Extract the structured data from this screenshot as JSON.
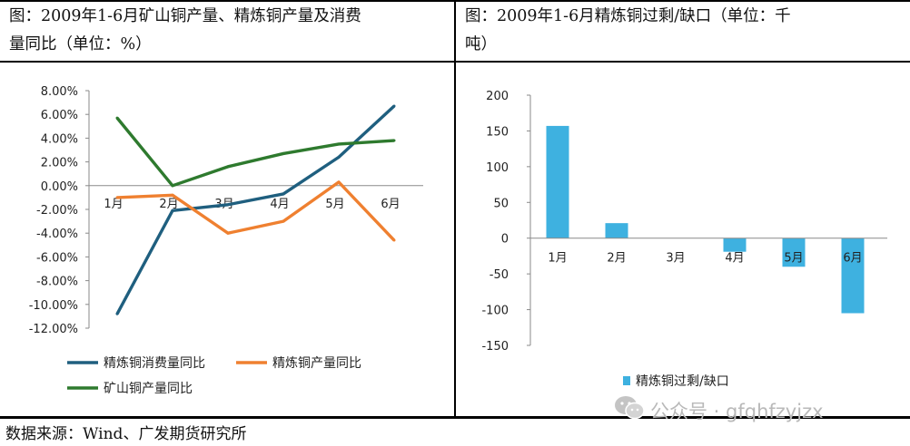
{
  "left_panel": {
    "title_line1": "图：2009年1-6月矿山铜产量、精炼铜产量及消费",
    "title_line2": "量同比（单位：%）"
  },
  "right_panel": {
    "title_line1": "图：2009年1-6月精炼铜过剩/缺口（单位：千",
    "title_line2": "吨）"
  },
  "source_text": "数据来源：Wind、广发期货研究所",
  "watermark": {
    "text": "公众号 · gfqhfzyjzx",
    "icon": "wechat-icon"
  },
  "chart_data": [
    {
      "type": "line",
      "categories": [
        "1月",
        "2月",
        "3月",
        "4月",
        "5月",
        "6月"
      ],
      "series": [
        {
          "name": "精炼铜消费量同比",
          "values": [
            -10.8,
            -2.1,
            -1.6,
            -0.7,
            2.4,
            6.7
          ],
          "color": "#1f5f7f"
        },
        {
          "name": "精炼铜产量同比",
          "values": [
            -1.0,
            -0.8,
            -4.0,
            -3.0,
            0.3,
            -4.6
          ],
          "color": "#ef8030"
        },
        {
          "name": "矿山铜产量同比",
          "values": [
            5.7,
            0.0,
            1.6,
            2.7,
            3.5,
            3.8
          ],
          "color": "#2e7a2e"
        }
      ],
      "yticks": [
        "8.00%",
        "6.00%",
        "4.00%",
        "2.00%",
        "0.00%",
        "-2.00%",
        "-4.00%",
        "-6.00%",
        "-8.00%",
        "-10.00%",
        "-12.00%"
      ],
      "ylim": [
        -12,
        8
      ],
      "legend_position": "bottom"
    },
    {
      "type": "bar",
      "categories": [
        "1月",
        "2月",
        "3月",
        "4月",
        "5月",
        "6月"
      ],
      "series": [
        {
          "name": "精炼铜过剩/缺口",
          "values": [
            157,
            21,
            0,
            -19,
            -40,
            -105
          ],
          "color": "#3eb1e0"
        }
      ],
      "yticks": [
        "200",
        "150",
        "100",
        "50",
        "0",
        "-50",
        "-100",
        "-150"
      ],
      "ylim": [
        -150,
        200
      ],
      "legend_position": "bottom"
    }
  ]
}
